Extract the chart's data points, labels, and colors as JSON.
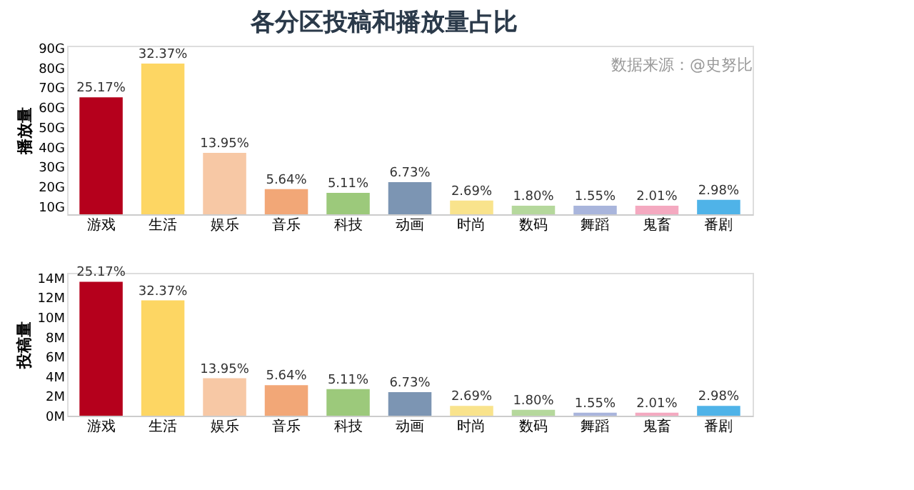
{
  "chart_data": [
    {
      "type": "bar",
      "title": "各分区投稿和播放量占比",
      "ylabel": "播放量",
      "annotations": [
        "数据来源：@史努比",
        {
          "text": "25.17%",
          "x": "游戏",
          "y": 65
        },
        {
          "text": "32.37%",
          "x": "生活",
          "y": 82
        },
        {
          "text": "13.95%",
          "x": "娱乐",
          "y": 37
        },
        {
          "text": "5.64%",
          "x": "音乐",
          "y": 18.7
        },
        {
          "text": "5.11%",
          "x": "科技",
          "y": 16.8
        },
        {
          "text": "6.73%",
          "x": "动画",
          "y": 22.2
        },
        {
          "text": "2.69%",
          "x": "时尚",
          "y": 12.9
        },
        {
          "text": "1.80%",
          "x": "数码",
          "y": 10.3
        },
        {
          "text": "1.55%",
          "x": "舞蹈",
          "y": 10.3
        },
        {
          "text": "2.01%",
          "x": "鬼畜",
          "y": 10.3
        },
        {
          "text": "2.98%",
          "x": "番剧",
          "y": 13.3
        }
      ],
      "categories": [
        "游戏",
        "生活",
        "娱乐",
        "音乐",
        "科技",
        "动画",
        "时尚",
        "数码",
        "舞蹈",
        "鬼畜",
        "番剧"
      ],
      "values": [
        65,
        82,
        37,
        18.7,
        16.8,
        22.2,
        12.9,
        10.3,
        10.3,
        10.3,
        13.3
      ],
      "colors": [
        "#b5001c",
        "#fdd663",
        "#f7c8a5",
        "#f2a777",
        "#9cc97b",
        "#7c95b3",
        "#f9e38c",
        "#b5d89c",
        "#a9b5dc",
        "#f4a9c0",
        "#4fb3e8"
      ],
      "ylim": [
        6,
        91
      ],
      "yticks": [
        {
          "value": 10,
          "label": "10G"
        },
        {
          "value": 20,
          "label": "20G"
        },
        {
          "value": 30,
          "label": "30G"
        },
        {
          "value": 40,
          "label": "40G"
        },
        {
          "value": 50,
          "label": "50G"
        },
        {
          "value": 60,
          "label": "60G"
        },
        {
          "value": 70,
          "label": "70G"
        },
        {
          "value": 80,
          "label": "80G"
        },
        {
          "value": 90,
          "label": "90G"
        }
      ],
      "grid": false
    },
    {
      "type": "bar",
      "ylabel": "投稿量",
      "annotations": [
        {
          "text": "25.17%",
          "x": "游戏",
          "y": 13.6
        },
        {
          "text": "32.37%",
          "x": "生活",
          "y": 11.7
        },
        {
          "text": "13.95%",
          "x": "娱乐",
          "y": 3.8
        },
        {
          "text": "5.64%",
          "x": "音乐",
          "y": 3.1
        },
        {
          "text": "5.11%",
          "x": "科技",
          "y": 2.7
        },
        {
          "text": "6.73%",
          "x": "动画",
          "y": 2.4
        },
        {
          "text": "2.69%",
          "x": "时尚",
          "y": 1.0
        },
        {
          "text": "1.80%",
          "x": "数码",
          "y": 0.6
        },
        {
          "text": "1.55%",
          "x": "舞蹈",
          "y": 0.3
        },
        {
          "text": "2.01%",
          "x": "鬼畜",
          "y": 0.3
        },
        {
          "text": "2.98%",
          "x": "番剧",
          "y": 1.0
        }
      ],
      "categories": [
        "游戏",
        "生活",
        "娱乐",
        "音乐",
        "科技",
        "动画",
        "时尚",
        "数码",
        "舞蹈",
        "鬼畜",
        "番剧"
      ],
      "values": [
        13.6,
        11.7,
        3.8,
        3.1,
        2.7,
        2.4,
        1.0,
        0.6,
        0.3,
        0.3,
        1.0
      ],
      "colors": [
        "#b5001c",
        "#fdd663",
        "#f7c8a5",
        "#f2a777",
        "#9cc97b",
        "#7c95b3",
        "#f9e38c",
        "#b5d89c",
        "#a9b5dc",
        "#f4a9c0",
        "#4fb3e8"
      ],
      "ylim": [
        0,
        14.5
      ],
      "yticks": [
        {
          "value": 0,
          "label": "0M"
        },
        {
          "value": 2,
          "label": "2M"
        },
        {
          "value": 4,
          "label": "4M"
        },
        {
          "value": 6,
          "label": "6M"
        },
        {
          "value": 8,
          "label": "8M"
        },
        {
          "value": 10,
          "label": "10M"
        },
        {
          "value": 12,
          "label": "12M"
        },
        {
          "value": 14,
          "label": "14M"
        }
      ],
      "grid": false
    }
  ]
}
